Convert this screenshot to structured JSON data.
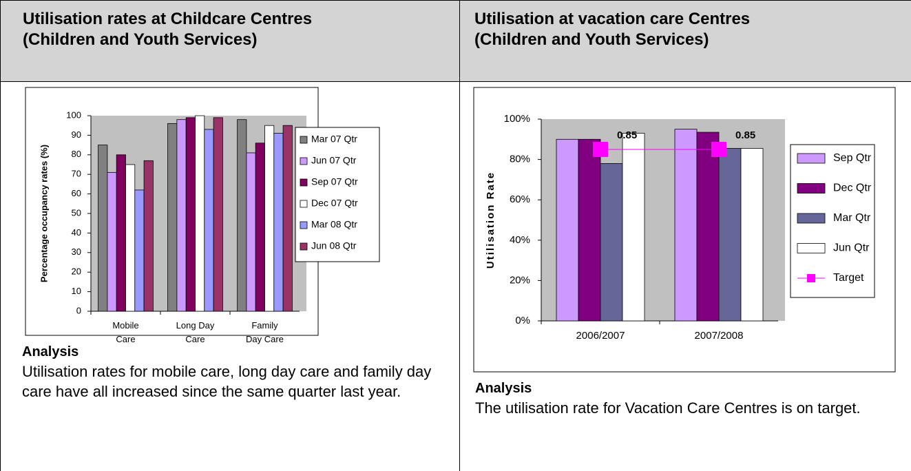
{
  "panels": [
    {
      "title_lines": [
        "Utilisation rates at Childcare Centres",
        "(Children and Youth Services)"
      ],
      "analysis_heading": "Analysis",
      "analysis_text": "Utilisation rates for mobile care, long day care and family day care have all increased since the same quarter last year."
    },
    {
      "title_lines": [
        "Utilisation at vacation care Centres",
        "(Children and Youth Services)"
      ],
      "analysis_heading": "Analysis",
      "analysis_text": "The utilisation rate for Vacation Care Centres is on target."
    }
  ],
  "chart_data": [
    {
      "type": "bar",
      "ylabel": "Percentage occupancy rates (%)",
      "categories": [
        "Mobile Care",
        "Long Day Care",
        "Family Day Care"
      ],
      "ylim": [
        0,
        100
      ],
      "yticks": [
        0,
        10,
        20,
        30,
        40,
        50,
        60,
        70,
        80,
        90,
        100
      ],
      "series": [
        {
          "name": "Mar 07 Qtr",
          "color": "#808080",
          "values": [
            85,
            96,
            98
          ]
        },
        {
          "name": "Jun 07 Qtr",
          "color": "#cc99ff",
          "values": [
            71,
            98,
            81
          ]
        },
        {
          "name": "Sep 07 Qtr",
          "color": "#800060",
          "values": [
            80,
            99,
            86
          ]
        },
        {
          "name": "Dec 07 Qtr",
          "color": "#ffffff",
          "values": [
            75,
            100,
            95
          ]
        },
        {
          "name": "Mar 08 Qtr",
          "color": "#9999ff",
          "values": [
            62,
            93,
            91
          ]
        },
        {
          "name": "Jun 08 Qtr",
          "color": "#993366",
          "values": [
            77,
            99,
            95
          ]
        }
      ],
      "legend": "right"
    },
    {
      "type": "bar",
      "ylabel": "Utilisation Rate",
      "categories": [
        "2006/2007",
        "2007/2008"
      ],
      "ylim": [
        0,
        1
      ],
      "yticks": [
        {
          "value": 0,
          "label": "0%"
        },
        {
          "value": 0.2,
          "label": "20%"
        },
        {
          "value": 0.4,
          "label": "40%"
        },
        {
          "value": 0.6,
          "label": "60%"
        },
        {
          "value": 0.8,
          "label": "80%"
        },
        {
          "value": 1,
          "label": "100%"
        }
      ],
      "series": [
        {
          "name": "Sep Qtr",
          "color": "#cc99ff",
          "values": [
            0.9,
            0.95
          ]
        },
        {
          "name": "Dec Qtr",
          "color": "#800080",
          "values": [
            0.9,
            0.935
          ]
        },
        {
          "name": "Mar Qtr",
          "color": "#666699",
          "values": [
            0.78,
            0.855
          ]
        },
        {
          "name": "Jun Qtr",
          "color": "#ffffff",
          "values": [
            0.93,
            0.855
          ]
        },
        {
          "name": "Target",
          "color": "#ff00ff",
          "type": "line",
          "values": [
            0.85,
            0.85
          ],
          "data_labels": true
        }
      ],
      "legend": "right"
    }
  ]
}
